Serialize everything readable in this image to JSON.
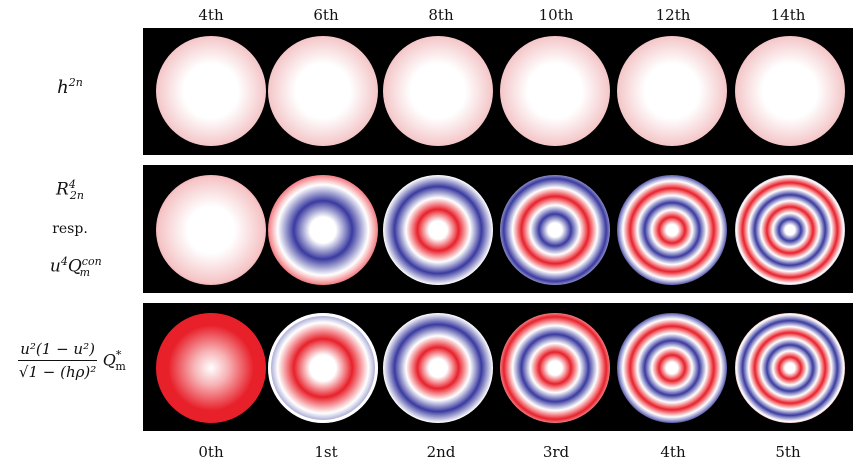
{
  "column_labels_top": [
    "4th",
    "6th",
    "8th",
    "10th",
    "12th",
    "14th"
  ],
  "column_labels_bottom": [
    "0th",
    "1st",
    "2nd",
    "3rd",
    "4th",
    "5th"
  ],
  "rows": [
    {
      "label_main": "h",
      "label_sup": "2n",
      "disks": [
        {
          "rings": 0,
          "style": "radial"
        },
        {
          "rings": 0,
          "style": "radial"
        },
        {
          "rings": 0,
          "style": "radial"
        },
        {
          "rings": 0,
          "style": "radial"
        },
        {
          "rings": 0,
          "style": "radial"
        },
        {
          "rings": 0,
          "style": "radial"
        }
      ]
    },
    {
      "label_line1_main": "R",
      "label_line1_sup": "4",
      "label_line1_sub": "2n",
      "label_line2": "resp.",
      "label_line3_main": "u",
      "label_line3_sup": "4",
      "label_line3_Q": "Q",
      "label_line3_sup2": "con",
      "label_line3_sub2": "m",
      "disks": [
        {
          "rings": 0,
          "style": "zernike"
        },
        {
          "rings": 1,
          "style": "zernike"
        },
        {
          "rings": 2,
          "style": "zernike"
        },
        {
          "rings": 3,
          "style": "zernike"
        },
        {
          "rings": 4,
          "style": "zernike"
        },
        {
          "rings": 5,
          "style": "zernike"
        }
      ]
    },
    {
      "label_num": "u²(1 − u²)",
      "label_den": "√1 − (hρ)²",
      "label_Q": "Q",
      "label_Q_sup": "*",
      "label_Q_sub": "m",
      "disks": [
        {
          "rings": 0,
          "style": "q"
        },
        {
          "rings": 1,
          "style": "q"
        },
        {
          "rings": 2,
          "style": "q"
        },
        {
          "rings": 3,
          "style": "q"
        },
        {
          "rings": 4,
          "style": "q"
        },
        {
          "rings": 5,
          "style": "q"
        }
      ]
    }
  ],
  "colors": {
    "background": "#000000",
    "positive": "#e8202a",
    "negative": "#3a3aa0",
    "neutral": "#ffffff"
  }
}
